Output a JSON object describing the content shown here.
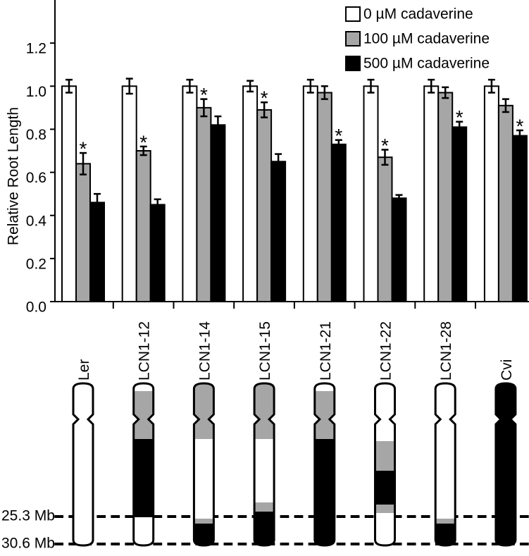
{
  "chart_data": {
    "type": "bar",
    "y_label": "Relative Root Length",
    "categories": [
      "Ler",
      "LCN1-12",
      "LCN1-14",
      "LCN1-15",
      "LCN1-21",
      "LCN1-22",
      "LCN1-28",
      "Cvi"
    ],
    "series": [
      {
        "name": "0 µM cadaverine",
        "color": "#ffffff",
        "values": [
          1.0,
          1.0,
          1.0,
          1.0,
          1.0,
          1.0,
          1.0,
          1.0
        ],
        "errors": [
          0.03,
          0.035,
          0.03,
          0.025,
          0.03,
          0.03,
          0.03,
          0.03
        ],
        "markers": [
          null,
          null,
          null,
          null,
          null,
          null,
          null,
          null
        ]
      },
      {
        "name": "100 µM cadaverine",
        "color": "#a6a6a6",
        "values": [
          0.64,
          0.7,
          0.9,
          0.89,
          0.97,
          0.67,
          0.97,
          0.91
        ],
        "errors": [
          0.05,
          0.02,
          0.04,
          0.035,
          0.03,
          0.035,
          0.025,
          0.03
        ],
        "markers": [
          "*",
          "*",
          "*",
          "*",
          null,
          "*",
          null,
          null
        ]
      },
      {
        "name": "500 µM cadaverine",
        "color": "#000000",
        "values": [
          0.46,
          0.45,
          0.82,
          0.65,
          0.73,
          0.48,
          0.81,
          0.77
        ],
        "errors": [
          0.04,
          0.025,
          0.04,
          0.035,
          0.02,
          0.015,
          0.025,
          0.025
        ],
        "markers": [
          null,
          null,
          null,
          null,
          "*",
          null,
          "*",
          "*"
        ]
      }
    ],
    "ylim": [
      0,
      1.4
    ],
    "yticks": [
      {
        "value": 0,
        "label": "0.0"
      },
      0.2,
      0.4,
      0.6,
      0.8,
      {
        "value": 1,
        "label": "1.0"
      },
      1.2
    ],
    "legend": "top-right"
  },
  "map": {
    "markers": [
      "25.3 Mb",
      "30.6 Mb"
    ]
  }
}
